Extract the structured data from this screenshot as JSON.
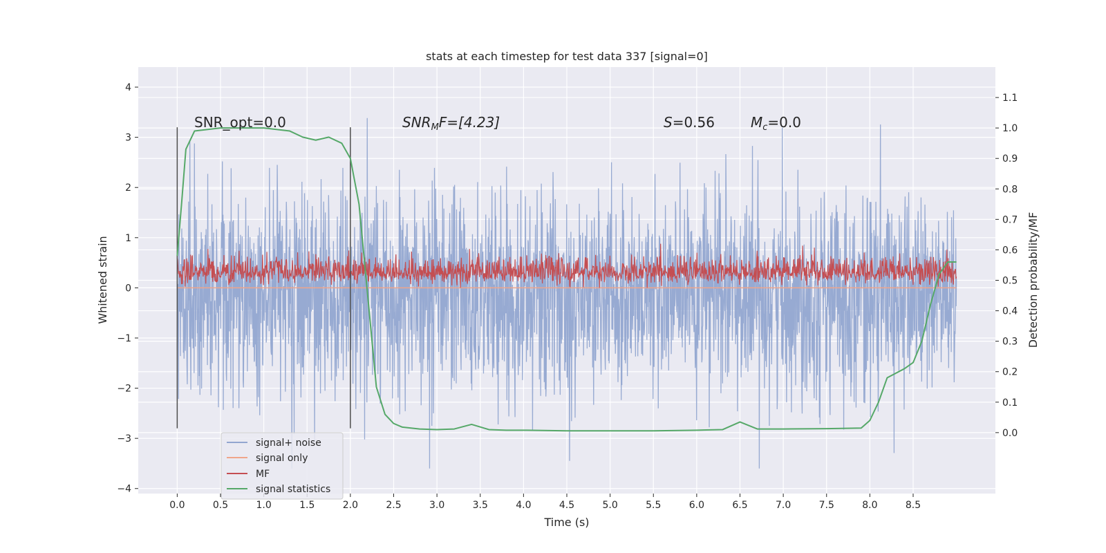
{
  "chart_data": {
    "type": "line",
    "title": "stats at each timestep for test data 337 [signal=0]",
    "xlabel": "Time (s)",
    "ylabel": "Whitened strain",
    "ylabel_right": "Detection probability/MF",
    "xlim": [
      -0.45,
      9.45
    ],
    "ylim": [
      -4.1,
      4.4
    ],
    "ylim_right": [
      -0.2,
      1.2
    ],
    "x_ticks": [
      "0.0",
      "0.5",
      "1.0",
      "1.5",
      "2.0",
      "2.5",
      "3.0",
      "3.5",
      "4.0",
      "4.5",
      "5.0",
      "5.5",
      "6.0",
      "6.5",
      "7.0",
      "7.5",
      "8.0",
      "8.5"
    ],
    "y_ticks": [
      "4",
      "3",
      "2",
      "1",
      "0",
      "−1",
      "−2",
      "−3",
      "−4"
    ],
    "y_ticks_right": [
      "1.1",
      "1.0",
      "0.9",
      "0.8",
      "0.7",
      "0.6",
      "0.5",
      "0.4",
      "0.3",
      "0.2",
      "0.1",
      "0.0"
    ],
    "grid": true,
    "legend_placement": "lower-left",
    "annotations": {
      "snr_opt": "SNR_opt=0.0",
      "snr_mf_base": "SNR",
      "snr_mf_sub": "M",
      "snr_mf_rest": "F=[4.23]",
      "s_name": "S",
      "s_value": "=0.56",
      "mc_name": "M",
      "mc_sub": "c",
      "mc_value": "=0.0"
    },
    "window_markers_x": [
      0.0,
      2.0
    ],
    "series": [
      {
        "name": "signal+ noise",
        "color": "#92a6d0",
        "axis": "left",
        "description_range": [
          -3.6,
          4.0
        ]
      },
      {
        "name": "signal only",
        "color": "#f0a58a",
        "axis": "left",
        "values_constant": 0.0
      },
      {
        "name": "MF",
        "color": "#c44e52",
        "axis": "left",
        "range": [
          0.0,
          1.0
        ]
      },
      {
        "name": "signal statistics",
        "color": "#55a868",
        "axis": "right",
        "x": [
          0.0,
          0.05,
          0.1,
          0.2,
          0.5,
          1.0,
          1.3,
          1.45,
          1.6,
          1.75,
          1.9,
          2.0,
          2.1,
          2.2,
          2.3,
          2.4,
          2.5,
          2.6,
          2.8,
          3.0,
          3.2,
          3.4,
          3.6,
          3.8,
          4.0,
          4.5,
          5.0,
          5.5,
          6.0,
          6.3,
          6.5,
          6.7,
          7.0,
          7.5,
          7.9,
          8.0,
          8.1,
          8.2,
          8.4,
          8.5,
          8.6,
          8.7,
          8.8,
          8.9,
          9.0
        ],
        "y": [
          0.58,
          0.75,
          0.93,
          0.99,
          1.0,
          1.0,
          0.99,
          0.97,
          0.96,
          0.97,
          0.95,
          0.9,
          0.75,
          0.45,
          0.15,
          0.06,
          0.03,
          0.018,
          0.012,
          0.01,
          0.012,
          0.027,
          0.01,
          0.008,
          0.008,
          0.006,
          0.006,
          0.006,
          0.008,
          0.01,
          0.035,
          0.012,
          0.012,
          0.013,
          0.015,
          0.04,
          0.1,
          0.18,
          0.21,
          0.23,
          0.3,
          0.42,
          0.52,
          0.56,
          0.56
        ]
      }
    ]
  },
  "legend": [
    {
      "label": "signal+ noise",
      "color": "#92a6d0"
    },
    {
      "label": "signal only",
      "color": "#f0a58a"
    },
    {
      "label": "MF",
      "color": "#c44e52"
    },
    {
      "label": "signal statistics",
      "color": "#55a868"
    }
  ]
}
